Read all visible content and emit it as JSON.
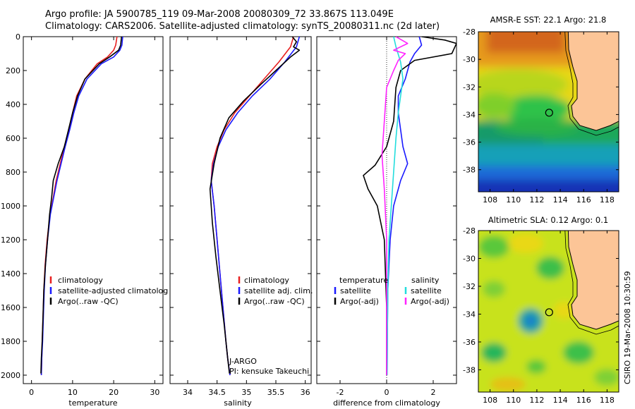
{
  "header": {
    "line1": "Argo profile: JA 5900785_119 09-Mar-2008 20080309_72 33.867S 113.049E",
    "line2": "Climatology: CARS2006. Satellite-adjusted climatology: synTS_20080311.nc (2d later)"
  },
  "side_stamp": "CSIRO 19-Mar-2008 10:30:59",
  "colors": {
    "climatology": "#e82020",
    "satellite": "#1a1aff",
    "argo": "#000000",
    "argo_salinity_diff": "#ff22ff",
    "satellite_salinity_diff": "#22dddd",
    "land": "#fcc597"
  },
  "chart_data": [
    {
      "type": "line",
      "panel": "temperature",
      "xlabel": "temperature",
      "xlim": [
        -2,
        32
      ],
      "ylim": [
        0,
        2050
      ],
      "y_reversed": true,
      "xticks": [
        0,
        10,
        20,
        30
      ],
      "yticks": [
        0,
        200,
        400,
        600,
        800,
        1000,
        1200,
        1400,
        1600,
        1800,
        2000
      ],
      "legend": [
        "climatology",
        "satellite-adjusted climatolog",
        "Argo(..raw -QC)"
      ],
      "series": [
        {
          "name": "climatology",
          "color": "#e82020",
          "x": [
            20.8,
            20.5,
            20.0,
            18.5,
            16.0,
            13.0,
            11.0,
            10.0,
            9.2,
            8.0,
            7.0,
            6.0,
            5.3,
            4.5,
            3.8,
            3.3,
            3.0,
            2.8,
            2.6,
            2.5,
            2.4
          ],
          "y": [
            0,
            50,
            80,
            120,
            160,
            250,
            350,
            450,
            550,
            650,
            750,
            850,
            950,
            1050,
            1200,
            1350,
            1500,
            1650,
            1800,
            1900,
            2000
          ]
        },
        {
          "name": "satellite-adjusted climatology",
          "color": "#1a1aff",
          "x": [
            22.2,
            22.0,
            21.5,
            20.0,
            17.0,
            13.5,
            11.5,
            10.3,
            9.3,
            8.2,
            7.2,
            6.2,
            5.4,
            4.6,
            3.9,
            3.4,
            3.1,
            2.9,
            2.7,
            2.5,
            2.4
          ],
          "y": [
            0,
            50,
            80,
            120,
            160,
            250,
            350,
            450,
            550,
            650,
            750,
            850,
            950,
            1050,
            1200,
            1350,
            1500,
            1650,
            1800,
            1900,
            2000
          ]
        },
        {
          "name": "Argo(..raw -QC)",
          "color": "#000000",
          "x": [
            21.9,
            21.7,
            21.2,
            19.0,
            16.5,
            13.0,
            11.2,
            10.0,
            9.0,
            8.0,
            6.5,
            5.3,
            4.9,
            4.4,
            3.9,
            3.4,
            3.0,
            2.8,
            2.6,
            2.4,
            2.3
          ],
          "y": [
            0,
            50,
            80,
            120,
            160,
            250,
            350,
            450,
            550,
            650,
            750,
            850,
            950,
            1050,
            1200,
            1350,
            1500,
            1650,
            1800,
            1900,
            1990
          ]
        }
      ]
    },
    {
      "type": "line",
      "panel": "salinity",
      "xlabel": "salinity",
      "xlim": [
        33.7,
        36.1
      ],
      "ylim": [
        0,
        2050
      ],
      "y_reversed": true,
      "xticks": [
        34,
        34.5,
        35,
        35.5,
        36
      ],
      "xticklabels": [
        "34",
        "34.5",
        "35",
        "35.5",
        "36"
      ],
      "legend": [
        "climatology",
        "satellite adj. clim.",
        "Argo(..raw -QC)"
      ],
      "annotations": [
        "J-ARGO",
        "PI: kensuke Takeuchi"
      ],
      "series": [
        {
          "name": "climatology",
          "color": "#e82020",
          "x": [
            35.8,
            35.75,
            35.55,
            35.3,
            35.05,
            34.8,
            34.62,
            34.5,
            34.42,
            34.4,
            34.45,
            34.5,
            34.55,
            34.6,
            34.65,
            34.68,
            34.7,
            34.72
          ],
          "y": [
            0,
            60,
            150,
            250,
            350,
            450,
            550,
            650,
            750,
            850,
            1000,
            1200,
            1400,
            1600,
            1800,
            1900,
            1950,
            2000
          ]
        },
        {
          "name": "satellite adj. clim.",
          "color": "#1a1aff",
          "x": [
            35.9,
            35.85,
            35.65,
            35.4,
            35.1,
            34.85,
            34.65,
            34.52,
            34.44,
            34.4,
            34.45,
            34.5,
            34.55,
            34.6,
            34.65,
            34.68,
            34.7,
            34.72
          ],
          "y": [
            0,
            60,
            150,
            250,
            350,
            450,
            550,
            650,
            750,
            850,
            1000,
            1200,
            1400,
            1600,
            1800,
            1900,
            1950,
            2000
          ]
        },
        {
          "name": "Argo(..raw -QC)",
          "color": "#000000",
          "x": [
            35.78,
            35.85,
            35.8,
            35.9,
            35.75,
            35.5,
            35.25,
            34.95,
            34.7,
            34.55,
            34.45,
            34.38,
            34.42,
            34.48,
            34.55,
            34.62,
            34.68,
            34.71
          ],
          "y": [
            0,
            30,
            60,
            80,
            120,
            200,
            280,
            380,
            480,
            600,
            750,
            900,
            1100,
            1300,
            1500,
            1700,
            1900,
            1990
          ]
        }
      ]
    },
    {
      "type": "line",
      "panel": "difference",
      "xlabel": "difference from climatology",
      "xlim": [
        -3,
        3
      ],
      "ylim": [
        0,
        2050
      ],
      "y_reversed": true,
      "xticks": [
        -2,
        0,
        2
      ],
      "legend_left_title": "temperature",
      "legend_right_title": "salinity",
      "legend": [
        "satellite",
        "Argo(-adj)",
        "satellite",
        "Argo(-adj)"
      ],
      "series": [
        {
          "name": "satellite",
          "group": "temperature",
          "color": "#1a1aff",
          "x": [
            1.4,
            1.5,
            1.2,
            1.0,
            0.8,
            0.5,
            0.5,
            0.6,
            0.7,
            0.9,
            0.6,
            0.3,
            0.15,
            0.05,
            0.03,
            0.02
          ],
          "y": [
            0,
            50,
            100,
            150,
            250,
            350,
            450,
            550,
            650,
            750,
            850,
            1000,
            1200,
            1500,
            1800,
            2000
          ]
        },
        {
          "name": "Argo(-adj)",
          "group": "temperature",
          "color": "#000000",
          "x": [
            1.5,
            2.5,
            3.0,
            2.8,
            1.2,
            0.6,
            0.4,
            0.3,
            0.0,
            -0.5,
            -1.0,
            -0.8,
            -0.4,
            -0.1,
            0.0,
            0.0
          ],
          "y": [
            0,
            20,
            40,
            100,
            140,
            200,
            300,
            500,
            650,
            760,
            820,
            900,
            1000,
            1200,
            1600,
            2000
          ]
        },
        {
          "name": "satellite",
          "group": "salinity",
          "color": "#22dddd",
          "x": [
            0.3,
            0.4,
            0.6,
            0.7,
            0.6,
            0.5,
            0.4,
            0.3,
            0.2,
            0.1,
            0.05,
            0.03,
            0.02
          ],
          "y": [
            0,
            60,
            150,
            250,
            350,
            450,
            600,
            800,
            1000,
            1200,
            1500,
            1800,
            2000
          ]
        },
        {
          "name": "Argo(-adj)",
          "group": "salinity",
          "color": "#ff22ff",
          "x": [
            0.4,
            0.9,
            0.3,
            0.8,
            0.5,
            0.3,
            0.0,
            -0.1,
            -0.2,
            -0.1,
            0.0,
            0.0
          ],
          "y": [
            0,
            40,
            80,
            100,
            140,
            200,
            300,
            500,
            700,
            900,
            1200,
            2000
          ]
        }
      ]
    },
    {
      "type": "heatmap",
      "panel": "sst-map",
      "title": "AMSR-E SST: 22.1 Argo: 21.8",
      "xlim": [
        107,
        119
      ],
      "ylim": [
        -39.6,
        -28
      ],
      "xticks": [
        108,
        110,
        112,
        114,
        116,
        118
      ],
      "yticks": [
        -28,
        -30,
        -32,
        -34,
        -36,
        -38
      ],
      "float_position": {
        "lon": 113.049,
        "lat": -33.867
      }
    },
    {
      "type": "heatmap",
      "panel": "sla-map",
      "title": "Altimetric SLA: 0.12 Argo: 0.1",
      "xlim": [
        107,
        119
      ],
      "ylim": [
        -39.6,
        -28
      ],
      "xticks": [
        108,
        110,
        112,
        114,
        116,
        118
      ],
      "yticks": [
        -28,
        -30,
        -32,
        -34,
        -36,
        -38
      ],
      "float_position": {
        "lon": 113.049,
        "lat": -33.867
      }
    }
  ]
}
